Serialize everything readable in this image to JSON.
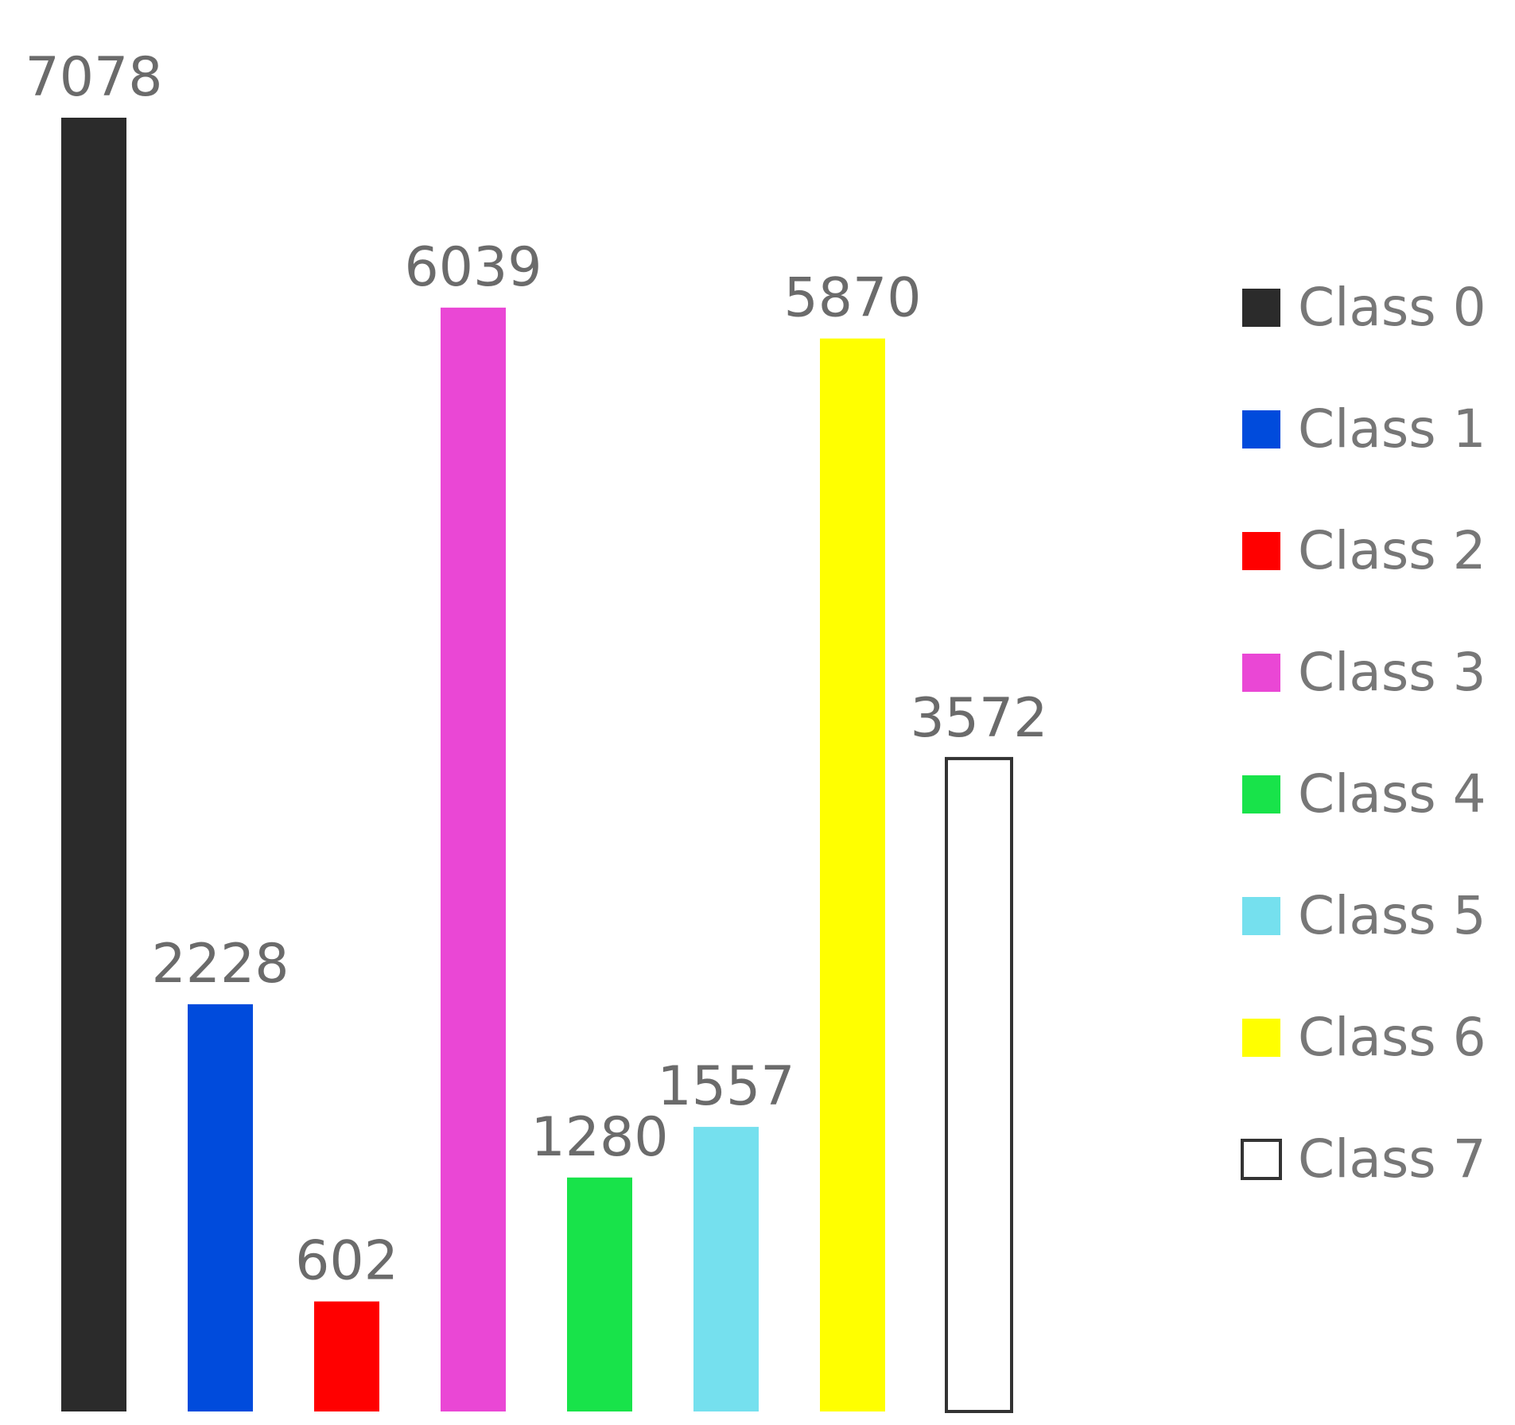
{
  "chart_data": {
    "type": "bar",
    "categories": [
      "Class 0",
      "Class 1",
      "Class 2",
      "Class 3",
      "Class 4",
      "Class 5",
      "Class 6",
      "Class 7"
    ],
    "values": [
      7078,
      2228,
      602,
      6039,
      1280,
      1557,
      5870,
      3572
    ],
    "value_labels": [
      "7078",
      "2228",
      "602",
      "6039",
      "1280",
      "1557",
      "5870",
      "3572"
    ],
    "colors": [
      "#2b2b2b",
      "#004bdc",
      "#ff0000",
      "#ea47d5",
      "#18e34a",
      "#75e0ee",
      "#ffff00",
      "#ffffff"
    ],
    "outline_colors": [
      "none",
      "none",
      "none",
      "none",
      "none",
      "none",
      "none",
      "#333333"
    ],
    "ylim": [
      0,
      7078
    ],
    "grid": false,
    "legend": {
      "placement": "right",
      "entries": [
        "Class 0",
        "Class 1",
        "Class 2",
        "Class 3",
        "Class 4",
        "Class 5",
        "Class 6",
        "Class 7"
      ]
    }
  }
}
